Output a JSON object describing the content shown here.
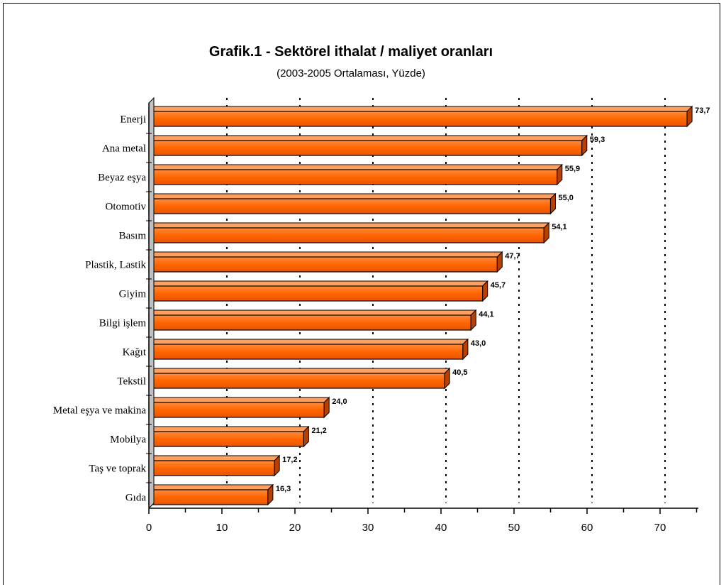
{
  "chart_data": {
    "type": "bar",
    "orientation": "horizontal",
    "title": "Grafik.1 - Sektörel ithalat / maliyet oranları",
    "subtitle": "(2003-2005 Ortalaması, Yüzde)",
    "categories": [
      "Enerji",
      "Ana metal",
      "Beyaz eşya",
      "Otomotiv",
      "Basım",
      "Plastik, Lastik",
      "Giyim",
      "Bilgi işlem",
      "Kağıt",
      "Tekstil",
      "Metal eşya ve makina",
      "Mobilya",
      "Taş ve toprak",
      "Gıda"
    ],
    "values": [
      73.7,
      59.3,
      55.9,
      55.0,
      54.1,
      47.7,
      45.7,
      44.1,
      43.0,
      40.5,
      24.0,
      21.2,
      17.2,
      16.3
    ],
    "value_labels": [
      "73,7",
      "59,3",
      "55,9",
      "55,0",
      "54,1",
      "47,7",
      "45,7",
      "44,1",
      "43,0",
      "40,5",
      "24,0",
      "21,2",
      "17,2",
      "16,3"
    ],
    "xticks": [
      "0",
      "10",
      "20",
      "30",
      "40",
      "50",
      "60",
      "70"
    ],
    "xlim": [
      0,
      75
    ],
    "grid": "vertical dotted",
    "bar_color": "#ff6600"
  }
}
